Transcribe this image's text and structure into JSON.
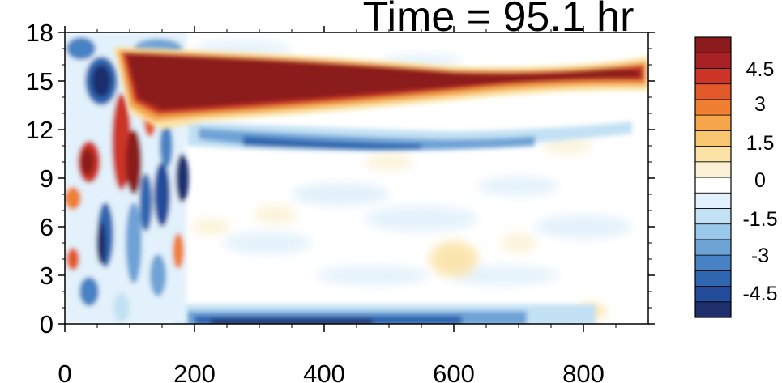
{
  "chart_data": {
    "type": "heatmap",
    "title": "Time = 95.1 hr",
    "xlabel": "",
    "ylabel": "",
    "xlim": [
      0,
      900
    ],
    "ylim": [
      0,
      18
    ],
    "x_ticks": [
      0,
      200,
      400,
      600,
      800
    ],
    "y_ticks": [
      0,
      3,
      6,
      9,
      12,
      15,
      18
    ],
    "colorbar": {
      "levels": [
        -6,
        -5.25,
        -4.5,
        -3.75,
        -3,
        -2.25,
        -1.5,
        -0.75,
        -0.25,
        0.25,
        0.75,
        1.5,
        2.25,
        3,
        3.75,
        4.5,
        5.25,
        6
      ],
      "colors": [
        "#1f2f6e",
        "#234c9a",
        "#2e66b0",
        "#4682c4",
        "#6ea3d6",
        "#9ac8ea",
        "#c3e1f4",
        "#e2f1fb",
        "#ffffff",
        "#fbf2d6",
        "#fbe3a6",
        "#f7c66f",
        "#f5a64b",
        "#ef7f32",
        "#e25a2a",
        "#cc3527",
        "#a82124",
        "#8b1a1c"
      ],
      "tick_labels": [
        "4.5",
        "3",
        "1.5",
        "0",
        "-1.5",
        "-3",
        "-4.5"
      ],
      "tick_values": [
        4.5,
        3,
        1.5,
        0,
        -1.5,
        -3,
        -4.5
      ]
    },
    "features": [
      {
        "desc": "strong positive band",
        "x_range": [
          130,
          900
        ],
        "y_center": 15.5,
        "value": 6
      },
      {
        "desc": "negative band below positive band",
        "x_range": [
          200,
          700
        ],
        "y_center": 11.5,
        "value": -2.5
      },
      {
        "desc": "negative band near surface",
        "x_range": [
          200,
          600
        ],
        "y_center": 0.3,
        "value": -3.5
      },
      {
        "desc": "disturbed region",
        "x_range": [
          0,
          220
        ],
        "y_range": [
          0,
          18
        ],
        "value_range": [
          -6,
          6
        ]
      }
    ]
  },
  "labels": {
    "title": "Time = 95.1 hr",
    "x_ticks": [
      "0",
      "200",
      "400",
      "600",
      "800"
    ],
    "y_ticks": [
      "0",
      "3",
      "6",
      "9",
      "12",
      "15",
      "18"
    ],
    "colorbar_ticks": [
      "4.5",
      "3",
      "1.5",
      "0",
      "-1.5",
      "-3",
      "-4.5"
    ]
  }
}
